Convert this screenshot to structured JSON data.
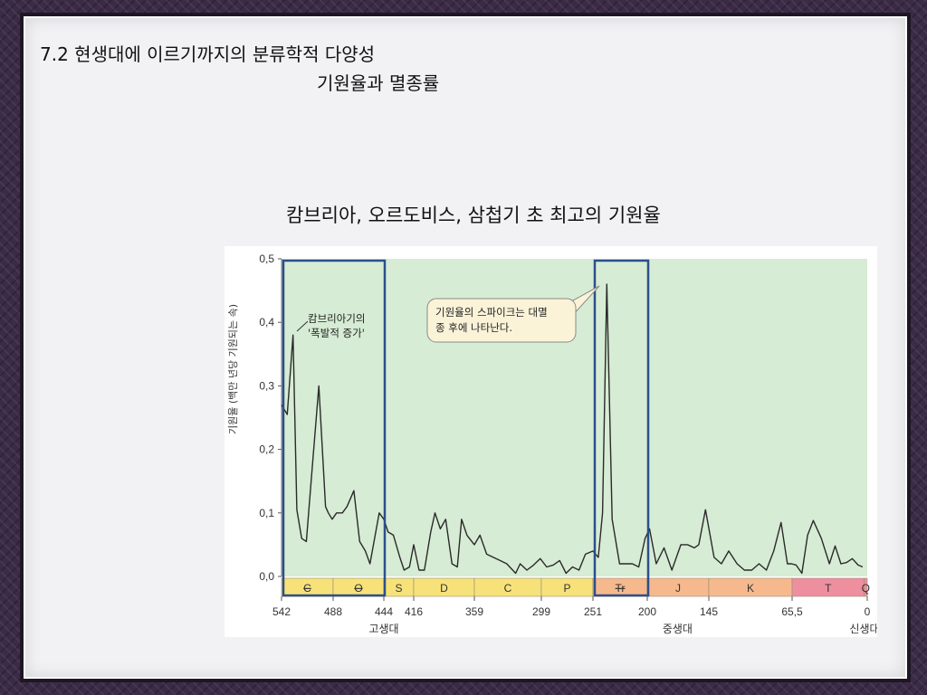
{
  "slide": {
    "title_line1": "7.2 현생대에 이르기까지의 분류학적 다양성",
    "title_line2": "기원율과 멸종률",
    "subtitle": "캄브리아, 오르도비스, 삼첩기 초 최고의 기원율"
  },
  "colors": {
    "plot_bg": "#d6ecd4",
    "line": "#2a2a2a",
    "box": "#2c4f8c",
    "paleozoic": "#f7e27a",
    "mesozoic": "#f6b98e",
    "cenozoic": "#ee8fa0"
  },
  "chart_data": {
    "type": "line",
    "ylabel": "기원율 (백만 년당 기원되는 속)",
    "ylim": [
      0,
      0.5
    ],
    "yticks": [
      "0,0",
      "0,1",
      "0,2",
      "0,3",
      "0,4",
      "0,5"
    ],
    "xlim": [
      542,
      0
    ],
    "xticks": [
      "542",
      "488",
      "444",
      "416",
      "359",
      "299",
      "251",
      "200",
      "145",
      "65,5",
      "0"
    ],
    "x_reversed": true,
    "x": [
      542,
      536,
      530,
      526,
      521,
      516,
      511,
      503,
      496,
      493,
      489,
      485,
      480,
      476,
      470,
      465,
      460,
      456,
      448,
      444,
      440,
      435,
      429,
      425,
      420,
      416,
      411,
      406,
      400,
      396,
      391,
      386,
      380,
      375,
      371,
      366,
      359,
      354,
      348,
      342,
      336,
      330,
      322,
      318,
      312,
      306,
      300,
      294,
      288,
      282,
      276,
      270,
      264,
      258,
      251,
      246,
      242,
      238,
      233,
      226,
      220,
      214,
      208,
      202,
      198,
      192,
      185,
      178,
      170,
      164,
      158,
      154,
      148,
      140,
      133,
      126,
      118,
      111,
      104,
      97,
      90,
      83,
      76,
      70,
      66,
      62,
      57,
      52,
      47,
      40,
      33,
      28,
      23,
      18,
      13,
      8,
      4
    ],
    "y": [
      0.27,
      0.255,
      0.38,
      0.105,
      0.06,
      0.055,
      0.15,
      0.3,
      0.11,
      0.1,
      0.09,
      0.1,
      0.1,
      0.11,
      0.135,
      0.055,
      0.04,
      0.02,
      0.1,
      0.09,
      0.07,
      0.065,
      0.03,
      0.01,
      0.015,
      0.05,
      0.01,
      0.01,
      0.07,
      0.1,
      0.075,
      0.09,
      0.02,
      0.015,
      0.09,
      0.065,
      0.05,
      0.065,
      0.035,
      0.03,
      0.025,
      0.02,
      0.005,
      0.02,
      0.01,
      0.018,
      0.028,
      0.015,
      0.018,
      0.025,
      0.005,
      0.015,
      0.01,
      0.035,
      0.04,
      0.03,
      0.1,
      0.46,
      0.09,
      0.02,
      0.02,
      0.02,
      0.015,
      0.06,
      0.075,
      0.02,
      0.045,
      0.01,
      0.05,
      0.05,
      0.045,
      0.05,
      0.105,
      0.03,
      0.02,
      0.04,
      0.02,
      0.01,
      0.01,
      0.02,
      0.01,
      0.04,
      0.085,
      0.02,
      0.02,
      0.018,
      0.005,
      0.065,
      0.088,
      0.06,
      0.02,
      0.048,
      0.02,
      0.022,
      0.028,
      0.018,
      0.015
    ],
    "annotations": [
      {
        "text": [
          "캄브리아기의",
          "'폭발적 증가'"
        ]
      },
      {
        "text": [
          "기원율의 스파이크는 대멸",
          "종 후에 나타난다."
        ]
      }
    ],
    "highlight_boxes": [
      {
        "from": 542,
        "to": 444
      },
      {
        "from": 251,
        "to": 200
      }
    ],
    "periods": [
      {
        "label": "C",
        "from": 542,
        "to": 488,
        "era": "paleozoic",
        "strike": true
      },
      {
        "label": "O",
        "from": 488,
        "to": 444,
        "era": "paleozoic",
        "strike": true
      },
      {
        "label": "S",
        "from": 444,
        "to": 416,
        "era": "paleozoic"
      },
      {
        "label": "D",
        "from": 416,
        "to": 359,
        "era": "paleozoic"
      },
      {
        "label": "C",
        "from": 359,
        "to": 299,
        "era": "paleozoic"
      },
      {
        "label": "P",
        "from": 299,
        "to": 251,
        "era": "paleozoic"
      },
      {
        "label": "Tr",
        "from": 251,
        "to": 200,
        "era": "mesozoic",
        "strike": true
      },
      {
        "label": "J",
        "from": 200,
        "to": 145,
        "era": "mesozoic"
      },
      {
        "label": "K",
        "from": 145,
        "to": 65.5,
        "era": "mesozoic"
      },
      {
        "label": "T",
        "from": 65.5,
        "to": 2.6,
        "era": "cenozoic"
      },
      {
        "label": "Q",
        "from": 2.6,
        "to": 0,
        "era": "cenozoic"
      }
    ],
    "eras": [
      {
        "label": "고생대",
        "at": 444
      },
      {
        "label": "중생대",
        "at": 173
      },
      {
        "label": "신생대",
        "at": 30
      }
    ]
  }
}
